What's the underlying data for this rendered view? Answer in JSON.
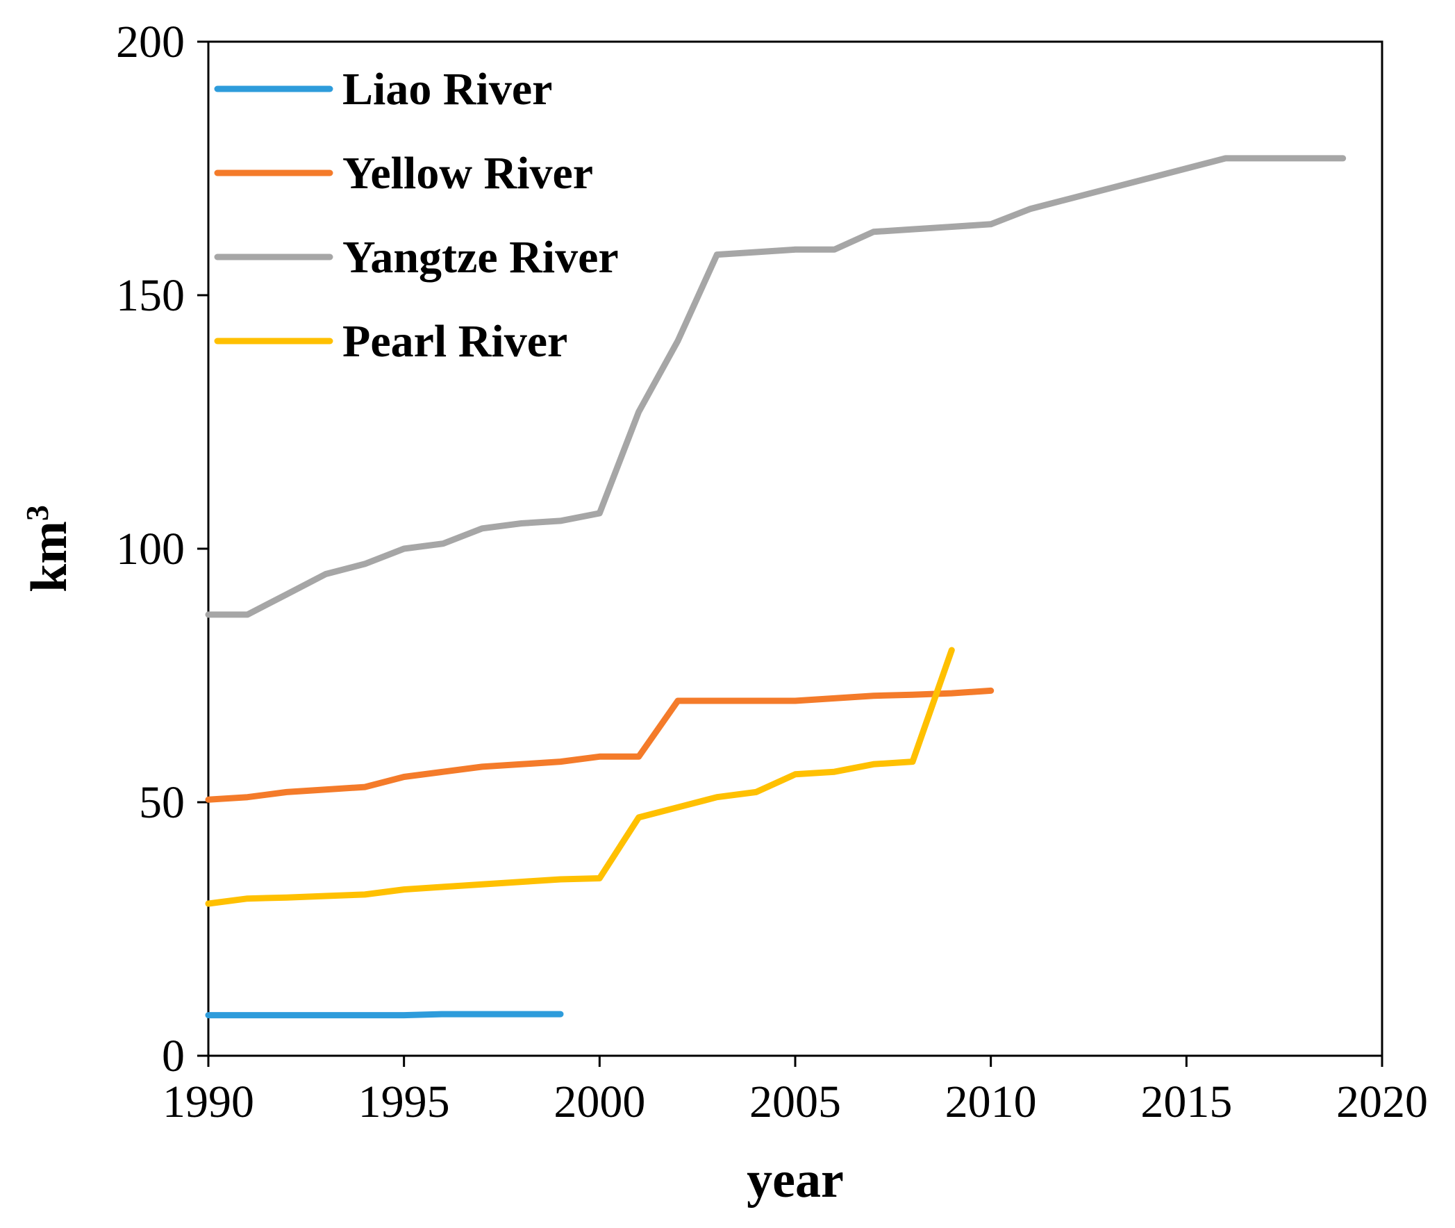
{
  "chart_data": {
    "type": "line",
    "title": "",
    "xlabel": "year",
    "ylabel": "km",
    "ylabel_superscript": "3",
    "xlim": [
      1990,
      2020
    ],
    "ylim": [
      0,
      200
    ],
    "xticks": [
      1990,
      1995,
      2000,
      2005,
      2010,
      2015,
      2020
    ],
    "yticks": [
      0,
      50,
      100,
      150,
      200
    ],
    "grid": false,
    "legend_position": "top-left",
    "series": [
      {
        "name": "Liao River",
        "color": "#2E9CDB",
        "x": [
          1990,
          1991,
          1992,
          1993,
          1994,
          1995,
          1996,
          1997,
          1998,
          1999
        ],
        "values": [
          8,
          8,
          8,
          8,
          8,
          8,
          8.2,
          8.2,
          8.2,
          8.2
        ]
      },
      {
        "name": "Yellow River",
        "color": "#F47B2A",
        "x": [
          1990,
          1991,
          1992,
          1993,
          1994,
          1995,
          1996,
          1997,
          1998,
          1999,
          2000,
          2001,
          2002,
          2003,
          2004,
          2005,
          2006,
          2007,
          2008,
          2009,
          2010
        ],
        "values": [
          50.5,
          51,
          52,
          52.5,
          53,
          55,
          56,
          57,
          57.5,
          58,
          59,
          59,
          70,
          70,
          70,
          70,
          70.5,
          71,
          71.2,
          71.5,
          72
        ]
      },
      {
        "name": "Yangtze River",
        "color": "#A6A6A6",
        "x": [
          1990,
          1991,
          1992,
          1993,
          1994,
          1995,
          1996,
          1997,
          1998,
          1999,
          2000,
          2001,
          2002,
          2003,
          2004,
          2005,
          2006,
          2007,
          2008,
          2009,
          2010,
          2011,
          2012,
          2013,
          2014,
          2015,
          2016,
          2017,
          2018,
          2019
        ],
        "values": [
          87,
          87,
          91,
          95,
          97,
          100,
          101,
          104,
          105,
          105.5,
          107,
          127,
          141,
          158,
          158.5,
          159,
          159,
          162.5,
          163,
          163.5,
          164,
          167,
          169,
          171,
          173,
          175,
          177,
          177,
          177,
          177
        ]
      },
      {
        "name": "Pearl River",
        "color": "#FFC000",
        "x": [
          1990,
          1991,
          1992,
          1993,
          1994,
          1995,
          1996,
          1997,
          1998,
          1999,
          2000,
          2001,
          2002,
          2003,
          2004,
          2005,
          2006,
          2007,
          2008,
          2009
        ],
        "values": [
          30,
          31,
          31.2,
          31.5,
          31.8,
          32.8,
          33.3,
          33.8,
          34.3,
          34.8,
          35,
          47,
          49,
          51,
          52,
          55.5,
          56,
          57.5,
          58,
          80
        ]
      }
    ]
  }
}
